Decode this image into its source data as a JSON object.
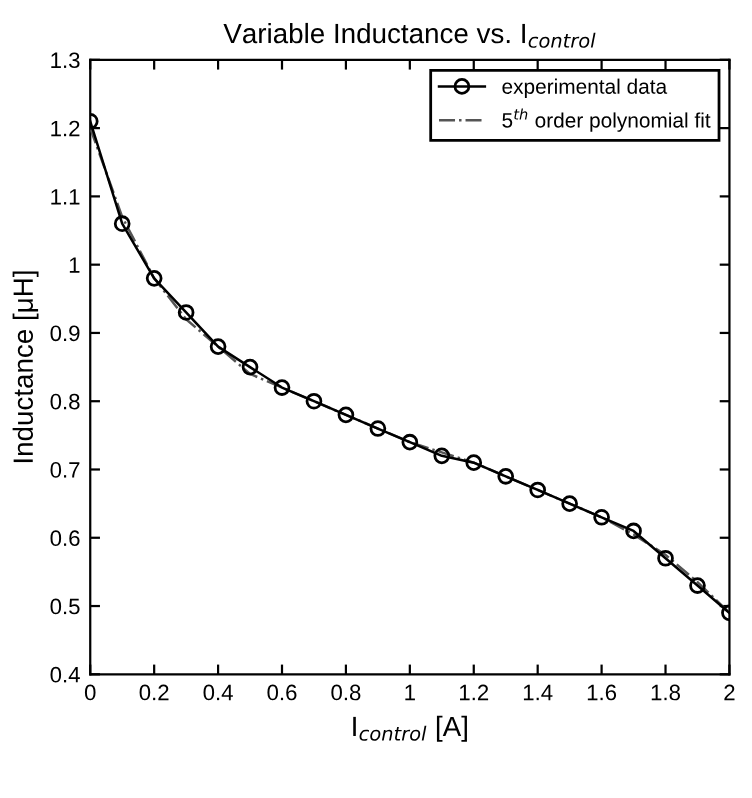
{
  "chart_data": {
    "type": "line",
    "title": "Variable Inductance vs. I$_{control}$",
    "xlabel": "I$_{control}$ [A]",
    "ylabel": "Inductance [μH]",
    "xlim": [
      0,
      2
    ],
    "xticks": [
      0,
      0.2,
      0.4,
      0.6,
      0.8,
      1,
      1.2,
      1.4,
      1.6,
      1.8,
      2
    ],
    "ylim": [
      0.4,
      1.3
    ],
    "yticks": [
      0.4,
      0.5,
      0.6,
      0.7,
      0.8,
      0.9,
      1,
      1.1,
      1.2,
      1.3
    ],
    "grid": false,
    "legend": "top right",
    "series": [
      {
        "name": "experimental data",
        "color": "#000000",
        "marker": "circle",
        "line_style": "solid",
        "x": [
          0,
          0.1,
          0.2,
          0.3,
          0.4,
          0.5,
          0.6,
          0.7,
          0.8,
          0.9,
          1.0,
          1.1,
          1.2,
          1.3,
          1.4,
          1.5,
          1.6,
          1.7,
          1.8,
          1.9,
          2.0
        ],
        "values": [
          1.21,
          1.06,
          0.98,
          0.93,
          0.88,
          0.85,
          0.82,
          0.8,
          0.78,
          0.76,
          0.74,
          0.72,
          0.71,
          0.69,
          0.67,
          0.65,
          0.63,
          0.61,
          0.57,
          0.53,
          0.49
        ]
      },
      {
        "name": "5$^{th}$ order polynomial fit",
        "color": "#555555",
        "marker": "none",
        "line_style": "dashdot",
        "x": [
          0,
          0.1,
          0.2,
          0.3,
          0.4,
          0.5,
          0.6,
          0.7,
          0.8,
          0.9,
          1.0,
          1.1,
          1.2,
          1.3,
          1.4,
          1.5,
          1.6,
          1.7,
          1.8,
          1.9,
          2.0
        ],
        "values": [
          1.2,
          1.07,
          0.98,
          0.92,
          0.88,
          0.84,
          0.82,
          0.8,
          0.78,
          0.76,
          0.74,
          0.725,
          0.71,
          0.69,
          0.67,
          0.65,
          0.63,
          0.605,
          0.575,
          0.535,
          0.49
        ]
      }
    ]
  }
}
